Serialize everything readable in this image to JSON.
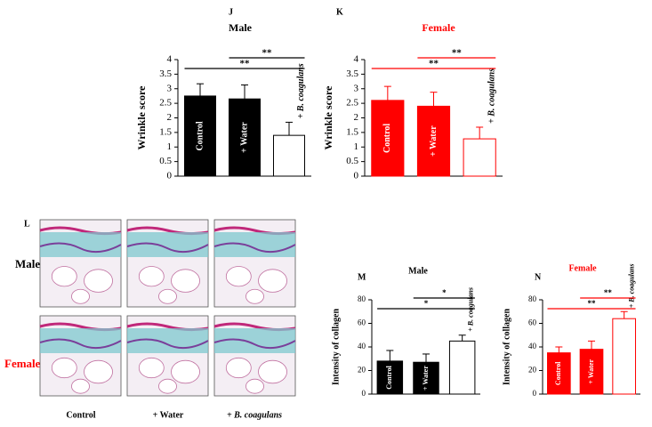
{
  "chart_data": [
    {
      "type": "bar",
      "panel": "J",
      "title": "Male",
      "title_color": "#000000",
      "ylabel": "Wrinkle score",
      "categories": [
        "Control",
        "+ Water",
        "+ B. coagulans"
      ],
      "values": [
        2.75,
        2.65,
        1.4
      ],
      "errors": [
        0.42,
        0.48,
        0.45
      ],
      "colors": [
        "#000000",
        "#000000",
        "#ffffff"
      ],
      "edgecolor": "#000000",
      "ylim": [
        0,
        4
      ],
      "yticks": [
        0,
        0.5,
        1,
        1.5,
        2,
        2.5,
        3,
        3.5,
        4
      ],
      "significance": [
        {
          "from": 1,
          "to": 2,
          "label": "**"
        },
        {
          "from": 0,
          "to": 2,
          "label": "**"
        }
      ]
    },
    {
      "type": "bar",
      "panel": "K",
      "title": "Female",
      "title_color": "#ff0000",
      "ylabel": "Wrinkle score",
      "categories": [
        "Control",
        "+ Water",
        "+ B. coagulans"
      ],
      "values": [
        2.6,
        2.4,
        1.28
      ],
      "errors": [
        0.48,
        0.48,
        0.4
      ],
      "colors": [
        "#ff0000",
        "#ff0000",
        "#ffffff"
      ],
      "edgecolor": "#ff0000",
      "ylim": [
        0,
        4
      ],
      "yticks": [
        0,
        0.5,
        1,
        1.5,
        2,
        2.5,
        3,
        3.5,
        4
      ],
      "significance": [
        {
          "from": 1,
          "to": 2,
          "label": "**"
        },
        {
          "from": 0,
          "to": 2,
          "label": "**"
        }
      ]
    },
    {
      "type": "bar",
      "panel": "M",
      "title": "Male",
      "title_color": "#000000",
      "ylabel": "Intensity of collagen",
      "categories": [
        "Control",
        "+ Water",
        "+ B. coagulans"
      ],
      "values": [
        28,
        27,
        45
      ],
      "errors": [
        9,
        7,
        5
      ],
      "colors": [
        "#000000",
        "#000000",
        "#ffffff"
      ],
      "edgecolor": "#000000",
      "ylim": [
        0,
        80
      ],
      "yticks": [
        0,
        20,
        40,
        60,
        80
      ],
      "significance": [
        {
          "from": 1,
          "to": 2,
          "label": "*"
        },
        {
          "from": 0,
          "to": 2,
          "label": "*"
        }
      ]
    },
    {
      "type": "bar",
      "panel": "N",
      "title": "Female",
      "title_color": "#ff0000",
      "ylabel": "Intensity of collagen",
      "categories": [
        "Control",
        "+ Water",
        "+ B. coagulans"
      ],
      "values": [
        35,
        38,
        64
      ],
      "errors": [
        5,
        7,
        6
      ],
      "colors": [
        "#ff0000",
        "#ff0000",
        "#ffffff"
      ],
      "edgecolor": "#ff0000",
      "ylim": [
        0,
        80
      ],
      "yticks": [
        0,
        20,
        40,
        60,
        80
      ],
      "significance": [
        {
          "from": 1,
          "to": 2,
          "label": "**"
        },
        {
          "from": 0,
          "to": 2,
          "label": "**"
        }
      ]
    }
  ],
  "panel_l": {
    "label": "L",
    "rows": [
      "Male",
      "Female"
    ],
    "columns": [
      "Control",
      "+ Water",
      "+ B. coagulans"
    ]
  }
}
